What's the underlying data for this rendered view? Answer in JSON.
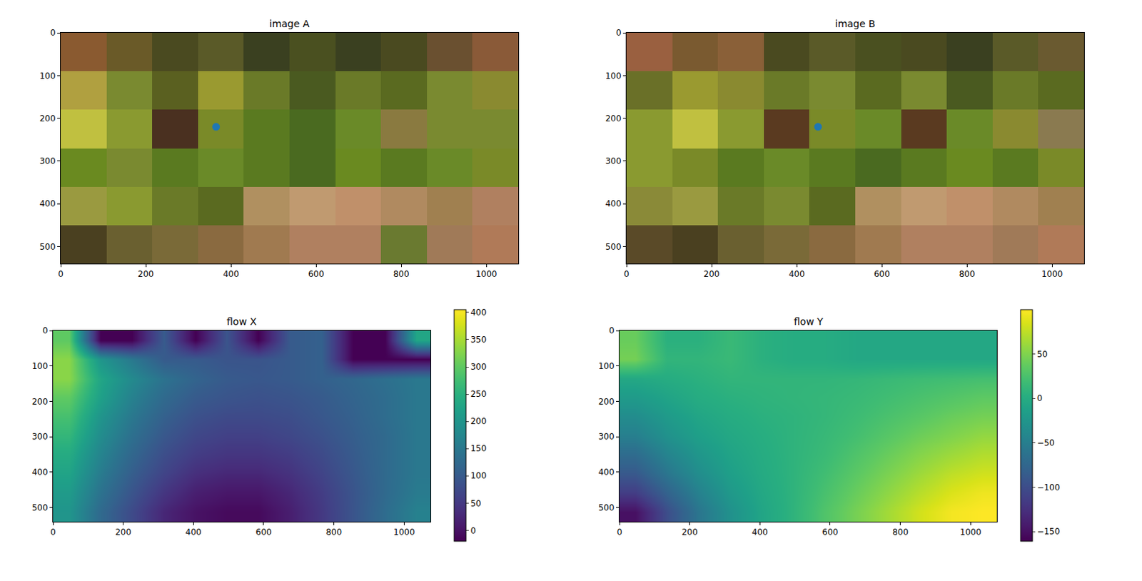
{
  "chart_data": [
    {
      "type": "image",
      "title": "image A",
      "xlim": [
        0,
        1075
      ],
      "ylim": [
        540,
        0
      ],
      "xticks": [
        0,
        200,
        400,
        600,
        800,
        1000
      ],
      "yticks": [
        0,
        100,
        200,
        300,
        400,
        500
      ],
      "pixels": [
        [
          "#8a5a30",
          "#6a5a28",
          "#4a4a20",
          "#5a5a28",
          "#3a4020",
          "#4a5020",
          "#3a4020",
          "#4a4a20",
          "#6a5030",
          "#8a5a38"
        ],
        [
          "#b0a040",
          "#7a8a30",
          "#5a6020",
          "#9a9a30",
          "#6a7a28",
          "#4a5a20",
          "#6a7a28",
          "#5a6a20",
          "#7a8a30",
          "#8a8a30"
        ],
        [
          "#c0c040",
          "#8a9a30",
          "#4a3020",
          "#7a8a28",
          "#5a7a20",
          "#4a6a20",
          "#6a8a28",
          "#8a7a40",
          "#7a8a30",
          "#7a8a30"
        ],
        [
          "#6a8a20",
          "#7a8a30",
          "#5a7a20",
          "#6a8a28",
          "#5a7a20",
          "#4a6a20",
          "#6a8a20",
          "#5a7a20",
          "#6a8a28",
          "#7a8a28"
        ],
        [
          "#9a9a40",
          "#8a9a30",
          "#6a7a28",
          "#5a6a20",
          "#b09060",
          "#c09a70",
          "#c0906a",
          "#b08a60",
          "#a08050",
          "#b08060"
        ],
        [
          "#4a4020",
          "#6a6030",
          "#7a6a38",
          "#8a6a40",
          "#a07a50",
          "#b08060",
          "#b08060",
          "#6a7a30",
          "#a07a58",
          "#b07a58"
        ]
      ],
      "points": [
        {
          "x": 365,
          "y": 220,
          "color": "#1f77b4",
          "marker": "circle"
        }
      ]
    },
    {
      "type": "image",
      "title": "image B",
      "xlim": [
        0,
        1075
      ],
      "ylim": [
        540,
        0
      ],
      "xticks": [
        0,
        200,
        400,
        600,
        800,
        1000
      ],
      "yticks": [
        0,
        100,
        200,
        300,
        400,
        500
      ],
      "pixels": [
        [
          "#9a6040",
          "#7a5a30",
          "#8a6038",
          "#4a4a20",
          "#5a5a28",
          "#4a5020",
          "#4a4a20",
          "#3a4020",
          "#5a5a28",
          "#6a5a30"
        ],
        [
          "#6a7028",
          "#9a9a30",
          "#8a8a30",
          "#6a7a28",
          "#7a8a30",
          "#5a6a20",
          "#7a8a30",
          "#4a5a20",
          "#6a7a28",
          "#5a6a20"
        ],
        [
          "#8a9a30",
          "#c0c040",
          "#8a9a30",
          "#5a3a20",
          "#7a8a28",
          "#6a8a28",
          "#5a3a20",
          "#6a8a28",
          "#8a8a30",
          "#8a7a50"
        ],
        [
          "#8a9a30",
          "#7a8a28",
          "#5a7a20",
          "#6a8a28",
          "#5a7a20",
          "#4a6a20",
          "#5a7a20",
          "#6a8a20",
          "#5a7a20",
          "#7a8a28"
        ],
        [
          "#8a8a38",
          "#9a9a40",
          "#6a7a28",
          "#7a8a30",
          "#5a6a20",
          "#b09060",
          "#c09a70",
          "#c0906a",
          "#b08a60",
          "#a08050"
        ],
        [
          "#5a4a28",
          "#4a4020",
          "#6a6030",
          "#7a6a38",
          "#8a6a40",
          "#a07a50",
          "#b08060",
          "#b08060",
          "#a07a58",
          "#b07a58"
        ]
      ],
      "points": [
        {
          "x": 450,
          "y": 220,
          "color": "#1f77b4",
          "marker": "circle"
        }
      ]
    },
    {
      "type": "heatmap",
      "title": "flow X",
      "color": "Viridis",
      "xlim": [
        0,
        1075
      ],
      "ylim": [
        540,
        0
      ],
      "xticks": [
        0,
        200,
        400,
        600,
        800,
        1000
      ],
      "yticks": [
        0,
        100,
        200,
        300,
        400,
        500
      ],
      "x": [
        45,
        135,
        225,
        315,
        405,
        495,
        585,
        675,
        765,
        855,
        945,
        1035
      ],
      "y": [
        27,
        81,
        135,
        189,
        243,
        297,
        351,
        405,
        459,
        513
      ],
      "z": [
        [
          300,
          -20,
          -20,
          100,
          -20,
          90,
          -20,
          100,
          110,
          -20,
          -20,
          230
        ],
        [
          330,
          200,
          150,
          100,
          100,
          90,
          90,
          100,
          110,
          -20,
          -20,
          -20
        ],
        [
          330,
          230,
          180,
          140,
          115,
          100,
          95,
          100,
          110,
          120,
          135,
          150
        ],
        [
          300,
          220,
          165,
          125,
          100,
          90,
          85,
          90,
          100,
          115,
          130,
          150
        ],
        [
          280,
          200,
          150,
          110,
          85,
          75,
          75,
          80,
          95,
          110,
          130,
          150
        ],
        [
          260,
          185,
          135,
          95,
          70,
          60,
          60,
          70,
          85,
          105,
          125,
          150
        ],
        [
          240,
          170,
          120,
          80,
          55,
          45,
          45,
          55,
          75,
          100,
          125,
          150
        ],
        [
          225,
          155,
          105,
          65,
          35,
          25,
          25,
          40,
          65,
          95,
          125,
          150
        ],
        [
          210,
          140,
          90,
          45,
          15,
          5,
          5,
          25,
          55,
          90,
          125,
          155
        ],
        [
          200,
          125,
          75,
          25,
          0,
          -10,
          -10,
          15,
          50,
          90,
          130,
          165
        ]
      ],
      "zlim": [
        -20,
        405
      ],
      "zticks": [
        0,
        50,
        100,
        150,
        200,
        250,
        300,
        350,
        400
      ]
    },
    {
      "type": "heatmap",
      "title": "flow Y",
      "color": "Viridis",
      "xlim": [
        0,
        1075
      ],
      "ylim": [
        540,
        0
      ],
      "xticks": [
        0,
        200,
        400,
        600,
        800,
        1000
      ],
      "yticks": [
        0,
        100,
        200,
        300,
        400,
        500
      ],
      "x": [
        45,
        135,
        225,
        315,
        405,
        495,
        585,
        675,
        765,
        855,
        945,
        1035
      ],
      "y": [
        27,
        81,
        135,
        189,
        243,
        297,
        351,
        405,
        459,
        513
      ],
      "z": [
        [
          40,
          5,
          5,
          15,
          5,
          0,
          0,
          -5,
          -5,
          -5,
          -5,
          -5
        ],
        [
          45,
          10,
          10,
          15,
          5,
          0,
          0,
          -5,
          -5,
          -5,
          -5,
          -5
        ],
        [
          -5,
          0,
          5,
          10,
          10,
          10,
          10,
          12,
          15,
          18,
          20,
          22
        ],
        [
          -20,
          -10,
          0,
          5,
          8,
          10,
          12,
          15,
          20,
          25,
          30,
          35
        ],
        [
          -35,
          -20,
          -8,
          0,
          5,
          8,
          12,
          18,
          25,
          32,
          40,
          45
        ],
        [
          -50,
          -30,
          -15,
          -5,
          2,
          8,
          14,
          22,
          32,
          42,
          50,
          58
        ],
        [
          -70,
          -45,
          -25,
          -10,
          0,
          8,
          16,
          28,
          40,
          52,
          62,
          70
        ],
        [
          -90,
          -60,
          -35,
          -15,
          -2,
          8,
          20,
          34,
          48,
          62,
          75,
          82
        ],
        [
          -115,
          -80,
          -48,
          -22,
          -5,
          8,
          24,
          40,
          56,
          72,
          86,
          94
        ],
        [
          -150,
          -100,
          -60,
          -30,
          -8,
          8,
          28,
          46,
          64,
          82,
          96,
          100
        ]
      ],
      "zlim": [
        -161,
        100
      ],
      "zticks": [
        {
          "value": -150,
          "label": "−150"
        },
        {
          "value": -100,
          "label": "−100"
        },
        {
          "value": -50,
          "label": "−50"
        },
        0,
        50
      ]
    }
  ]
}
